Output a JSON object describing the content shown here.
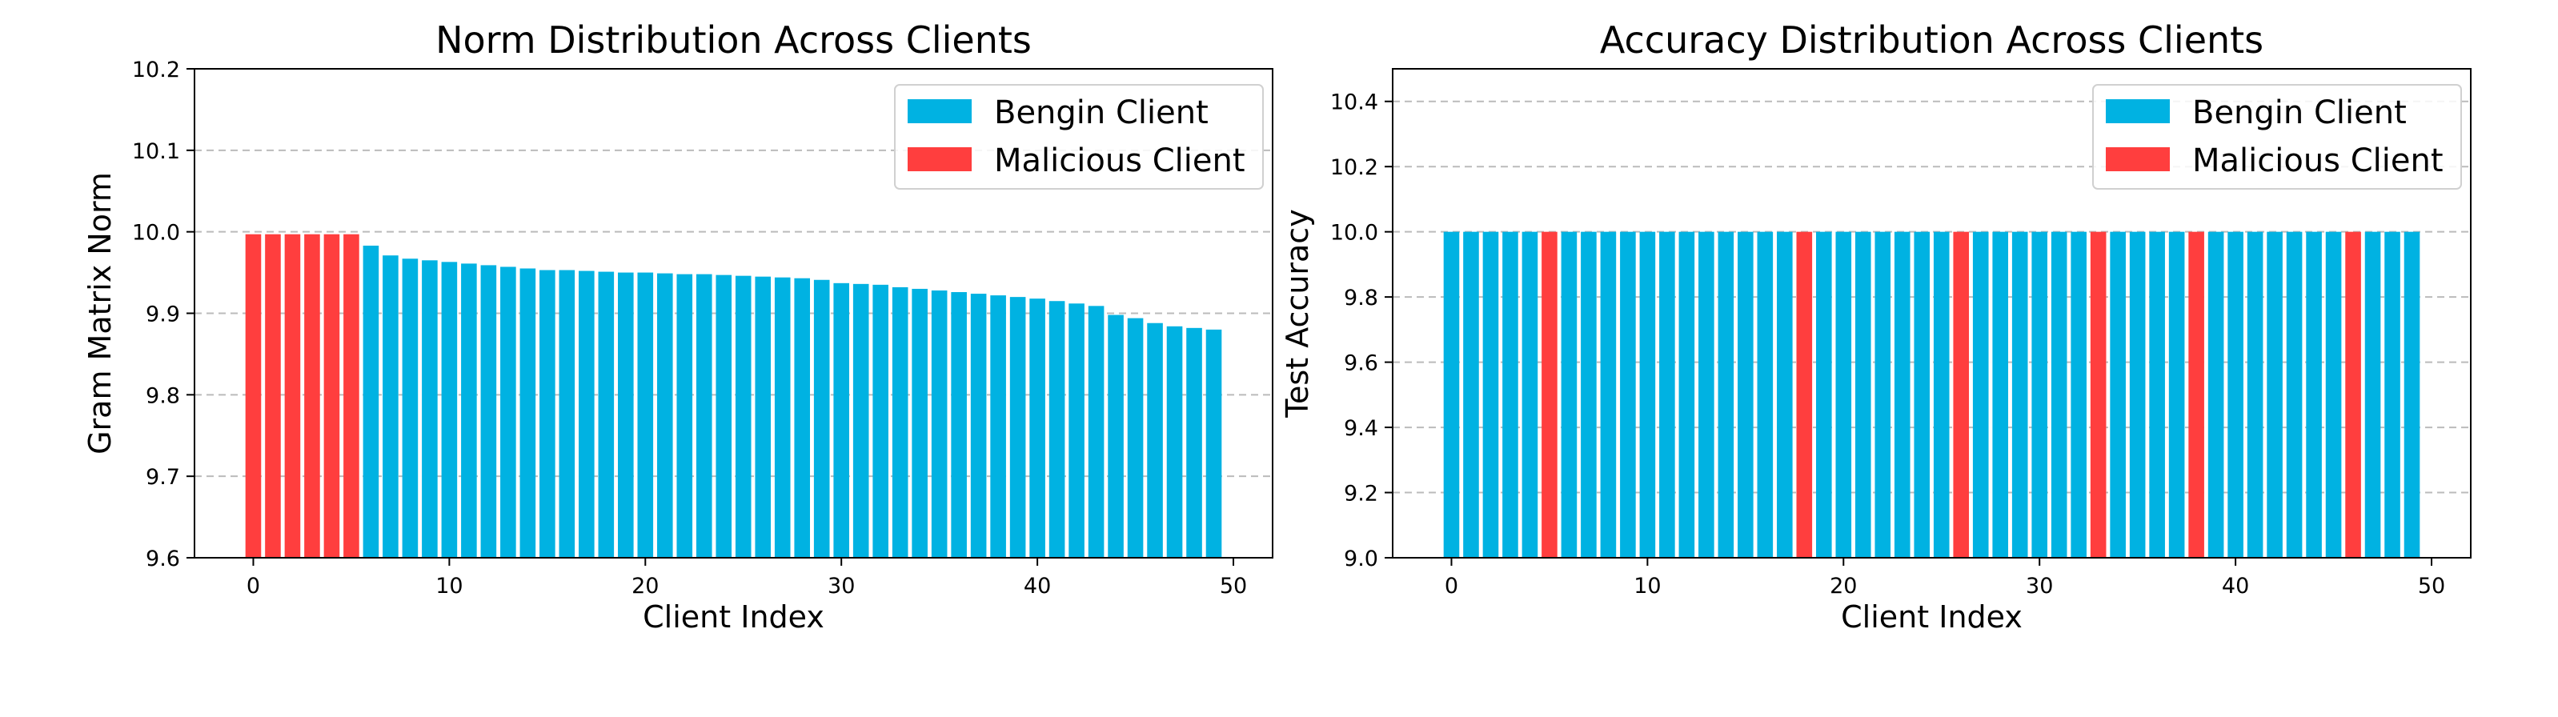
{
  "colors": {
    "benign": "#00B2E2",
    "malicious": "#FF3E3E",
    "grid": "#BBBBBB",
    "axis": "#000000"
  },
  "legend": {
    "benign_label": "Bengin Client",
    "malicious_label": "Malicious Client",
    "position": "upper right"
  },
  "chart_data": [
    {
      "type": "bar",
      "title": "Norm Distribution Across Clients",
      "xlabel": "Client Index",
      "ylabel": "Gram Matrix Norm",
      "xlim": [
        -3,
        52
      ],
      "ylim": [
        9.6,
        10.2
      ],
      "xticks": [
        0,
        10,
        20,
        30,
        40,
        50
      ],
      "yticks": [
        9.6,
        9.7,
        9.8,
        9.9,
        10.0,
        10.1,
        10.2
      ],
      "ytick_labels": [
        "9.6",
        "9.7",
        "9.8",
        "9.9",
        "10.0",
        "10.1",
        "10.2"
      ],
      "grid": "y-dashed",
      "x": [
        0,
        1,
        2,
        3,
        4,
        5,
        6,
        7,
        8,
        9,
        10,
        11,
        12,
        13,
        14,
        15,
        16,
        17,
        18,
        19,
        20,
        21,
        22,
        23,
        24,
        25,
        26,
        27,
        28,
        29,
        30,
        31,
        32,
        33,
        34,
        35,
        36,
        37,
        38,
        39,
        40,
        41,
        42,
        43,
        44,
        45,
        46,
        47,
        48,
        49
      ],
      "values": [
        9.997,
        9.997,
        9.997,
        9.997,
        9.997,
        9.997,
        9.983,
        9.971,
        9.967,
        9.965,
        9.963,
        9.961,
        9.959,
        9.957,
        9.955,
        9.953,
        9.953,
        9.952,
        9.951,
        9.95,
        9.95,
        9.949,
        9.948,
        9.948,
        9.947,
        9.946,
        9.945,
        9.944,
        9.943,
        9.941,
        9.937,
        9.936,
        9.935,
        9.932,
        9.93,
        9.928,
        9.926,
        9.924,
        9.922,
        9.92,
        9.918,
        9.915,
        9.912,
        9.909,
        9.898,
        9.894,
        9.888,
        9.884,
        9.882,
        9.88
      ],
      "malicious": [
        0,
        1,
        2,
        3,
        4,
        5
      ]
    },
    {
      "type": "bar",
      "title": "Accuracy Distribution Across Clients",
      "xlabel": "Client Index",
      "ylabel": "Test Accuracy",
      "xlim": [
        -3,
        52
      ],
      "ylim": [
        9.0,
        10.5
      ],
      "xticks": [
        0,
        10,
        20,
        30,
        40,
        50
      ],
      "yticks": [
        9.0,
        9.2,
        9.4,
        9.6,
        9.8,
        10.0,
        10.2,
        10.4
      ],
      "ytick_labels": [
        "9.0",
        "9.2",
        "9.4",
        "9.6",
        "9.8",
        "10.0",
        "10.2",
        "10.4"
      ],
      "grid": "y-dashed",
      "x": [
        0,
        1,
        2,
        3,
        4,
        5,
        6,
        7,
        8,
        9,
        10,
        11,
        12,
        13,
        14,
        15,
        16,
        17,
        18,
        19,
        20,
        21,
        22,
        23,
        24,
        25,
        26,
        27,
        28,
        29,
        30,
        31,
        32,
        33,
        34,
        35,
        36,
        37,
        38,
        39,
        40,
        41,
        42,
        43,
        44,
        45,
        46,
        47,
        48,
        49
      ],
      "values": [
        10,
        10,
        10,
        10,
        10,
        10,
        10,
        10,
        10,
        10,
        10,
        10,
        10,
        10,
        10,
        10,
        10,
        10,
        10,
        10,
        10,
        10,
        10,
        10,
        10,
        10,
        10,
        10,
        10,
        10,
        10,
        10,
        10,
        10,
        10,
        10,
        10,
        10,
        10,
        10,
        10,
        10,
        10,
        10,
        10,
        10,
        10,
        10,
        10,
        10
      ],
      "malicious": [
        5,
        18,
        26,
        33,
        38,
        46
      ]
    }
  ]
}
